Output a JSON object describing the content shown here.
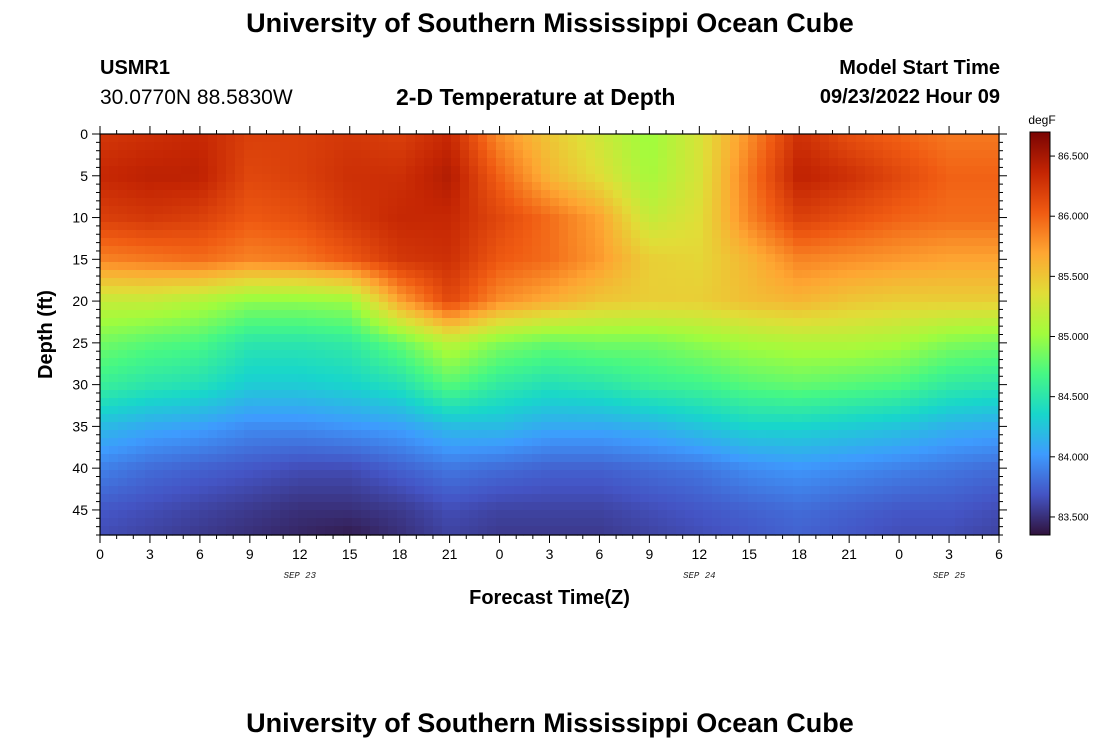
{
  "page": {
    "title_top": "University of Southern Mississippi Ocean Cube",
    "title_bottom": "University of Southern Mississippi Ocean Cube",
    "station_name": "USMR1",
    "station_coords": "30.0770N  88.5830W",
    "plot_title": "2-D Temperature at Depth",
    "model_start_label": "Model Start Time",
    "model_start_time": "09/23/2022 Hour 09"
  },
  "chart_data": {
    "type": "heatmap",
    "title": "2-D Temperature at Depth",
    "xlabel": "Forecast Time(Z)",
    "ylabel": "Depth (ft)",
    "units": "degF",
    "x_hours": [
      0,
      3,
      6,
      9,
      12,
      15,
      18,
      21,
      24,
      27,
      30,
      33,
      36,
      39,
      42,
      45,
      48,
      51,
      54
    ],
    "x_tick_labels": [
      "0",
      "3",
      "6",
      "9",
      "12",
      "15",
      "18",
      "21",
      "0",
      "3",
      "6",
      "9",
      "12",
      "15",
      "18",
      "21",
      "0",
      "3",
      "6"
    ],
    "date_labels": [
      {
        "text": "SEP 23",
        "hour": 12
      },
      {
        "text": "SEP 24",
        "hour": 36
      },
      {
        "text": "SEP 25",
        "hour": 51
      }
    ],
    "y_ticks": [
      0,
      5,
      10,
      15,
      20,
      25,
      30,
      35,
      40,
      45
    ],
    "xlim": [
      0,
      54
    ],
    "ylim": [
      0,
      48
    ],
    "depths_ft": [
      0,
      5,
      10,
      15,
      20,
      25,
      30,
      35,
      40,
      45,
      48
    ],
    "temperature_grid_degF": [
      [
        86.25,
        86.3,
        86.35,
        86.2,
        86.2,
        86.25,
        86.2,
        86.35,
        85.8,
        85.5,
        85.25,
        85.0,
        85.3,
        85.8,
        86.3,
        86.1,
        86.0,
        85.9,
        85.9
      ],
      [
        86.35,
        86.4,
        86.4,
        86.15,
        86.2,
        86.3,
        86.3,
        86.45,
        86.0,
        85.6,
        85.35,
        85.05,
        85.3,
        85.9,
        86.4,
        86.3,
        86.15,
        86.0,
        86.0
      ],
      [
        86.2,
        86.25,
        86.2,
        86.05,
        86.1,
        86.25,
        86.35,
        86.35,
        86.15,
        85.95,
        85.7,
        85.2,
        85.35,
        85.85,
        86.2,
        86.1,
        86.0,
        85.95,
        85.95
      ],
      [
        85.85,
        85.9,
        85.95,
        85.85,
        85.9,
        86.05,
        86.25,
        86.3,
        86.05,
        85.95,
        85.75,
        85.45,
        85.4,
        85.6,
        85.85,
        85.8,
        85.75,
        85.7,
        85.7
      ],
      [
        85.2,
        85.2,
        85.1,
        84.95,
        84.95,
        85.0,
        85.7,
        86.15,
        85.8,
        85.65,
        85.5,
        85.45,
        85.45,
        85.55,
        85.6,
        85.5,
        85.45,
        85.45,
        85.45
      ],
      [
        84.85,
        84.75,
        84.7,
        84.5,
        84.5,
        84.55,
        84.8,
        85.15,
        84.9,
        84.8,
        84.85,
        84.85,
        84.95,
        85.05,
        85.1,
        85.1,
        85.05,
        84.9,
        84.85
      ],
      [
        84.6,
        84.5,
        84.45,
        84.3,
        84.3,
        84.35,
        84.45,
        84.75,
        84.55,
        84.45,
        84.5,
        84.6,
        84.65,
        84.75,
        84.8,
        84.75,
        84.7,
        84.55,
        84.5
      ],
      [
        84.2,
        84.1,
        84.05,
        83.95,
        83.95,
        84.0,
        84.05,
        84.2,
        84.2,
        84.1,
        84.1,
        84.15,
        84.25,
        84.35,
        84.35,
        84.3,
        84.25,
        84.15,
        84.1
      ],
      [
        83.9,
        83.8,
        83.75,
        83.7,
        83.65,
        83.65,
        83.75,
        83.85,
        83.8,
        83.75,
        83.75,
        83.8,
        83.85,
        83.95,
        84.0,
        83.95,
        83.9,
        83.85,
        83.8
      ],
      [
        83.7,
        83.65,
        83.6,
        83.55,
        83.5,
        83.5,
        83.55,
        83.65,
        83.6,
        83.6,
        83.6,
        83.65,
        83.7,
        83.75,
        83.8,
        83.75,
        83.7,
        83.7,
        83.65
      ],
      [
        83.65,
        83.6,
        83.55,
        83.5,
        83.45,
        83.4,
        83.5,
        83.6,
        83.55,
        83.55,
        83.55,
        83.6,
        83.65,
        83.7,
        83.75,
        83.7,
        83.65,
        83.65,
        83.6
      ]
    ],
    "colorbar": {
      "label": "degF",
      "min": 83.35,
      "max": 86.7,
      "ticks": [
        "83.500",
        "84.000",
        "84.500",
        "85.000",
        "85.500",
        "86.000",
        "86.500"
      ],
      "palette": [
        "#30123b",
        "#4454c4",
        "#3e9bfe",
        "#18d6cb",
        "#46f884",
        "#a2fc3c",
        "#e1dd37",
        "#fea632",
        "#f05b12",
        "#c42503",
        "#7a0403"
      ]
    }
  }
}
